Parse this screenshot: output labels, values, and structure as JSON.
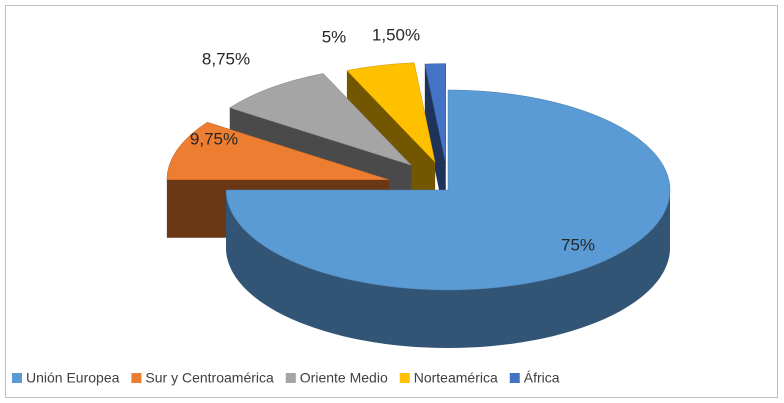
{
  "chart_data": {
    "type": "pie3d",
    "categories": [
      "Unión Europea",
      "Sur y Centroamérica",
      "Oriente Medio",
      "Norteamérica",
      "África"
    ],
    "values": [
      75,
      9.75,
      8.75,
      5,
      1.5
    ],
    "value_labels": [
      "75%",
      "9,75%",
      "8,75%",
      "5%",
      "1,50%"
    ],
    "colors": [
      "#5b9bd5",
      "#ed7d31",
      "#a5a5a5",
      "#ffc000",
      "#4472c4"
    ],
    "legend": "bottom"
  }
}
